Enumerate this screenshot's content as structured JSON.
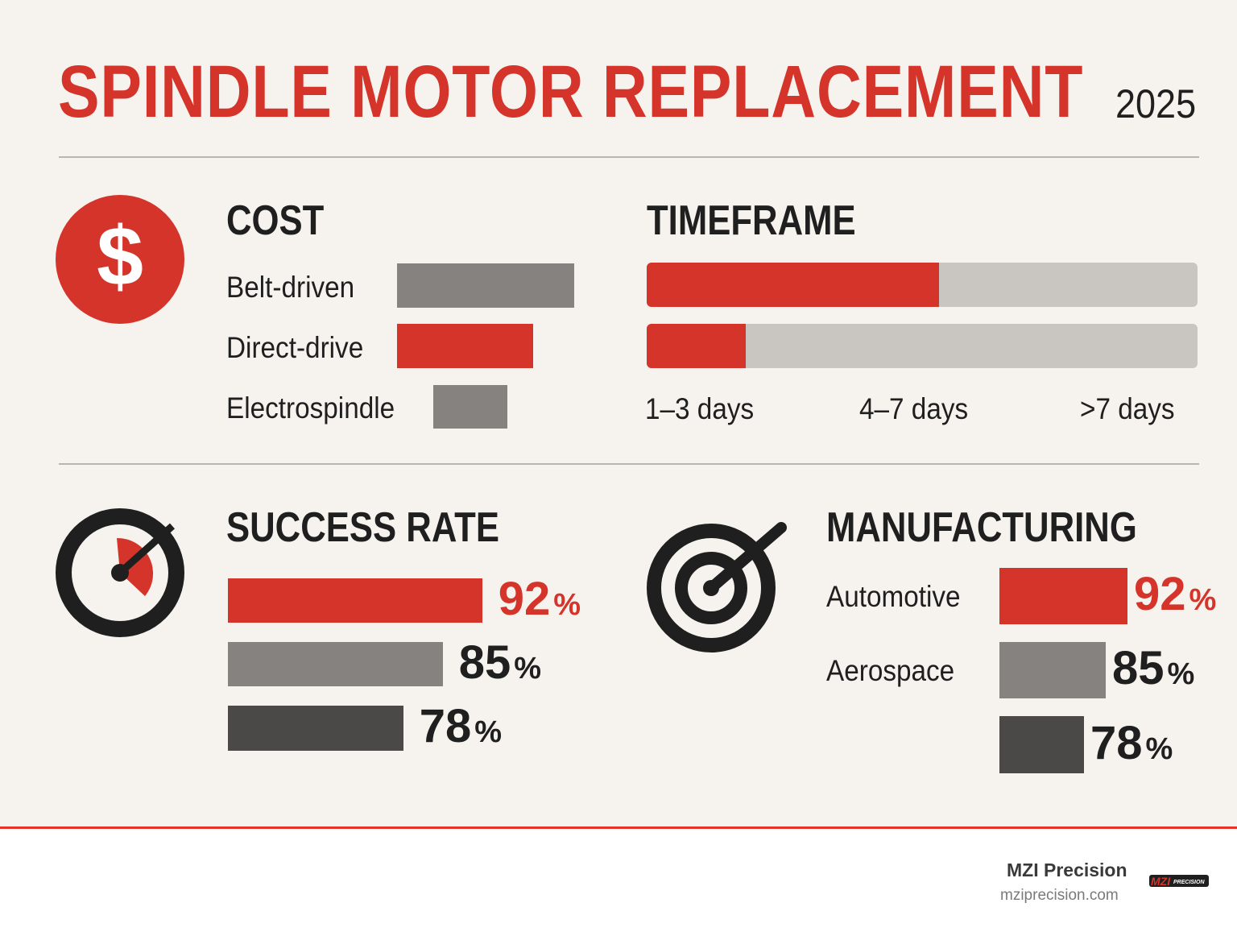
{
  "header": {
    "title": "SPINDLE MOTOR REPLACEMENT",
    "year": "2025"
  },
  "colors": {
    "accent": "#d4342a",
    "gray": "#858280",
    "dark": "#4a4948",
    "track": "#c9c5c0",
    "background": "#f6f3ef"
  },
  "icons": {
    "cost": "dollar-icon",
    "success": "gauge-icon",
    "manufacturing": "target-icon"
  },
  "chart_data": [
    {
      "type": "bar",
      "title": "COST",
      "orientation": "horizontal",
      "categories": [
        "Belt-driven",
        "Direct-drive",
        "Electrospindle"
      ],
      "values": [
        100,
        77,
        42
      ],
      "colors": [
        "#858280",
        "#d4342a",
        "#858280"
      ]
    },
    {
      "type": "bar",
      "title": "TIMEFRAME",
      "orientation": "horizontal",
      "values": [
        53,
        18
      ],
      "xlim": [
        0,
        100
      ],
      "tick_labels": [
        "1–3 days",
        "4–7 days",
        ">7 days"
      ]
    },
    {
      "type": "bar",
      "title": "SUCCESS RATE",
      "orientation": "horizontal",
      "values": [
        92,
        85,
        78
      ],
      "unit": "%",
      "colors": [
        "#d4342a",
        "#858280",
        "#4a4948"
      ]
    },
    {
      "type": "bar",
      "title": "MANUFACTURING",
      "orientation": "horizontal",
      "categories": [
        "Automotive",
        "Aerospace",
        ""
      ],
      "values": [
        92,
        85,
        78
      ],
      "unit": "%",
      "colors": [
        "#d4342a",
        "#858280",
        "#4a4948"
      ]
    }
  ],
  "footer": {
    "company": "MZI Precision",
    "website": "mziprecision.com",
    "logo_text": "MZI PRECISION"
  }
}
